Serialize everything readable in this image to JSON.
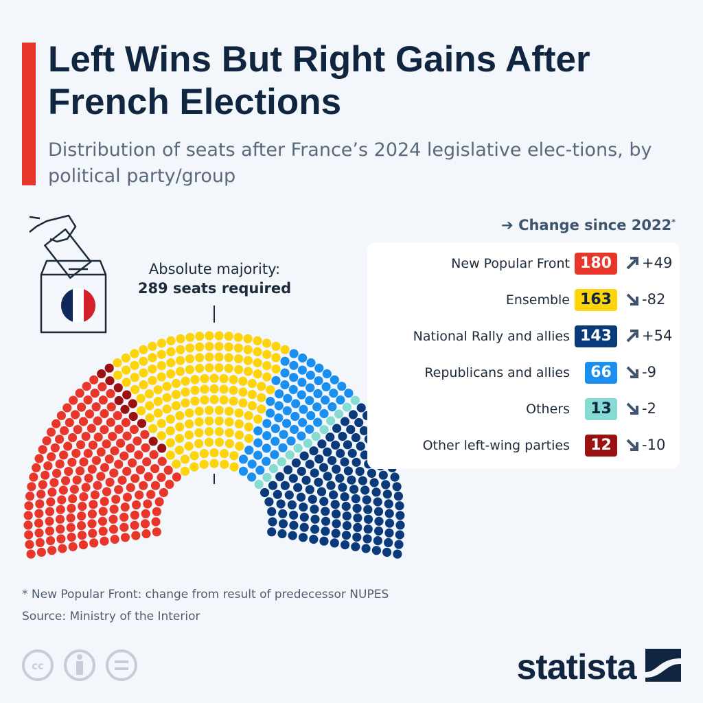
{
  "header": {
    "title": "Left Wins But Right Gains After French Elections",
    "subtitle": "Distribution of seats after France’s 2024 legislative elec-tions, by political party/group",
    "accent_color": "#e8372a"
  },
  "icons": [
    "ballot-box-icon",
    "french-flag-icon",
    "arrow-right-icon",
    "cc-icon",
    "by-icon",
    "nd-icon",
    "statista-logo"
  ],
  "majority": {
    "line1": "Absolute majority:",
    "line2": "289 seats required"
  },
  "legend": {
    "heading": "Change since 2022",
    "asterisk": "*"
  },
  "chart_data": {
    "type": "parliament",
    "total_seats": 577,
    "majority_seats": 289,
    "legend_title": "Change since 2022*",
    "parties": [
      {
        "name": "New Popular Front",
        "seats": 180,
        "change": "+49",
        "direction": "up",
        "color": "#e8372a",
        "text_color": "#ffffff"
      },
      {
        "name": "Other left-wing parties",
        "seats": 12,
        "change": "-10",
        "direction": "down",
        "color": "#9b1111",
        "text_color": "#ffffff"
      },
      {
        "name": "Ensemble",
        "seats": 163,
        "change": "-82",
        "direction": "down",
        "color": "#fdd30a",
        "text_color": "#0f2540"
      },
      {
        "name": "Republicans and allies",
        "seats": 66,
        "change": "-9",
        "direction": "down",
        "color": "#1a8ff0",
        "text_color": "#ffffff"
      },
      {
        "name": "Others",
        "seats": 13,
        "change": "-2",
        "direction": "down",
        "color": "#86dcd2",
        "text_color": "#0f2540"
      },
      {
        "name": "National Rally and allies",
        "seats": 143,
        "change": "+54",
        "direction": "up",
        "color": "#0b3a7a",
        "text_color": "#ffffff"
      }
    ],
    "legend_order": [
      0,
      2,
      5,
      3,
      4,
      1
    ]
  },
  "footer": {
    "note": "* New Popular Front: change from result of predecessor NUPES",
    "source": "Source: Ministry of the Interior",
    "brand": "statista"
  }
}
